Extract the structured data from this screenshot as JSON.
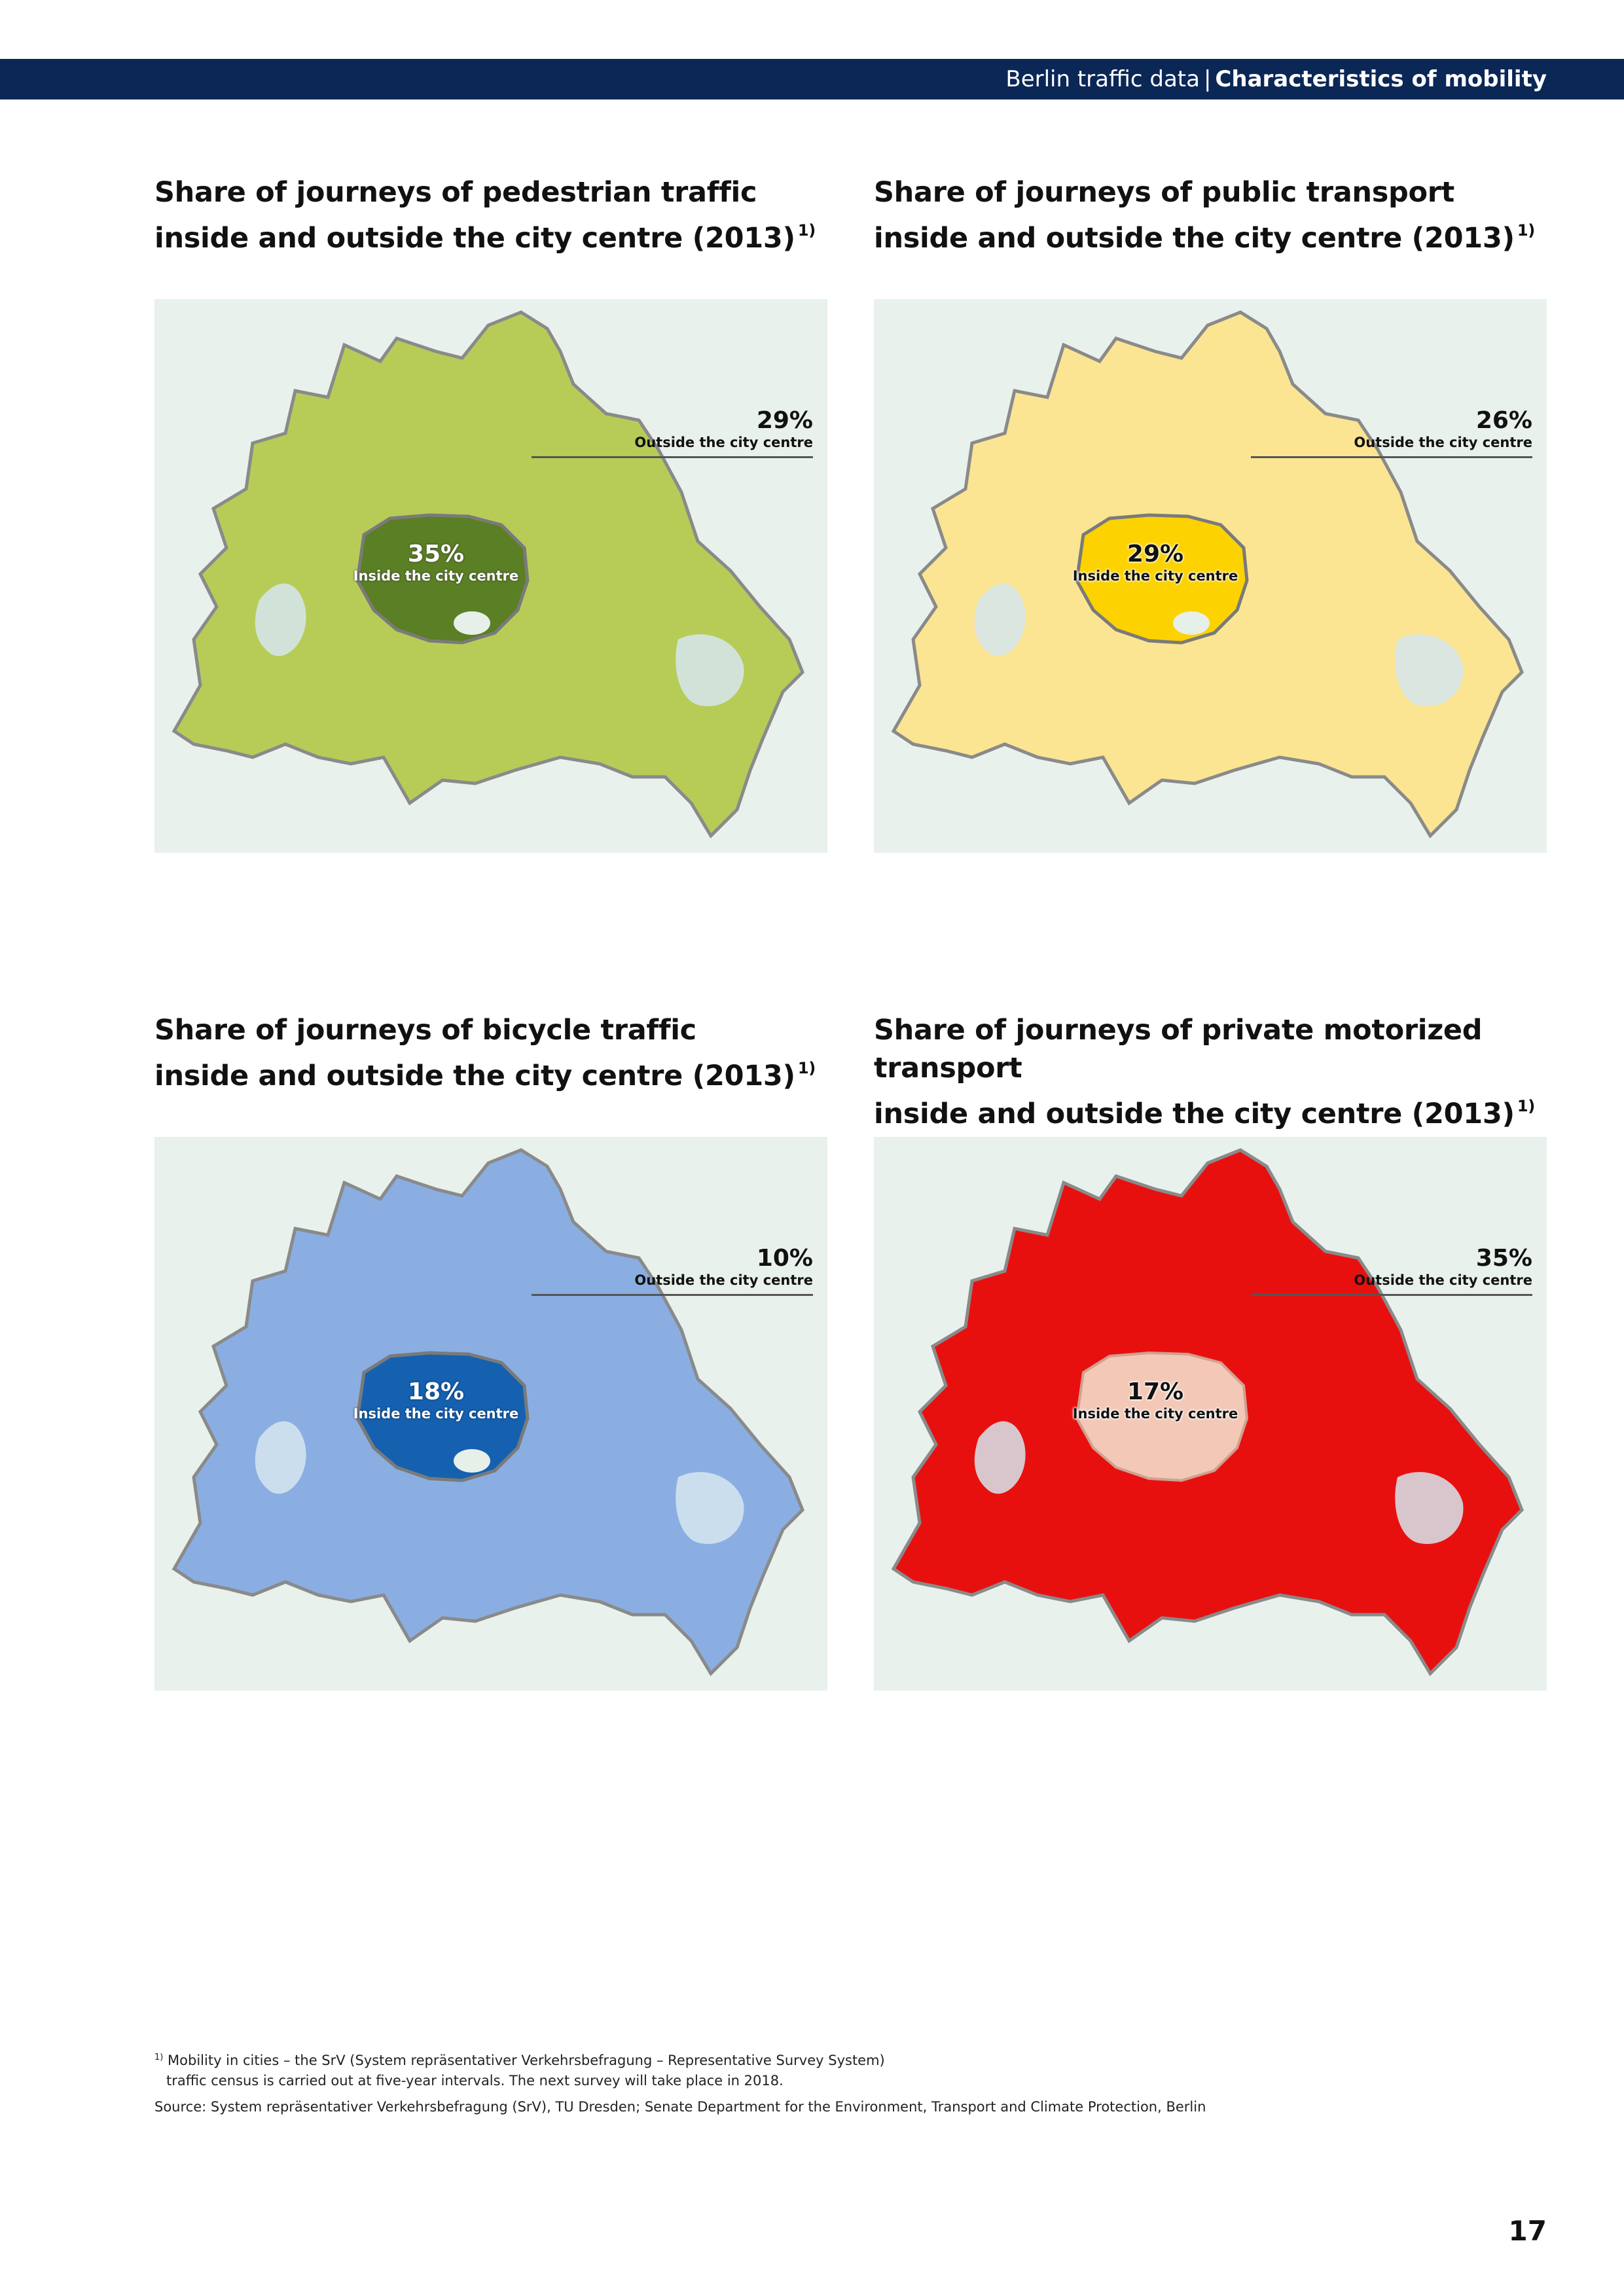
{
  "header": {
    "section": "Berlin traffic data",
    "separator": "|",
    "chapter": "Characteristics of mobility"
  },
  "panels": [
    {
      "title_line1": "Share of journeys of pedestrian traffic",
      "title_line2": "inside and outside the city centre (2013)",
      "footnote_ref": "1)",
      "inside_pct": "35%",
      "inside_label": "Inside the city centre",
      "outside_pct": "29%",
      "outside_label": "Outside the city centre",
      "inside_value": 35,
      "outside_value": 29,
      "colors": {
        "area": "#b7cc57",
        "centre": "#5b7f24",
        "centre_text": "#ffffff"
      }
    },
    {
      "title_line1": "Share of journeys of public transport",
      "title_line2": "inside and outside the city centre (2013)",
      "footnote_ref": "1)",
      "inside_pct": "29%",
      "inside_label": "Inside the city centre",
      "outside_pct": "26%",
      "outside_label": "Outside the city centre",
      "inside_value": 29,
      "outside_value": 26,
      "colors": {
        "area": "#fbe592",
        "centre": "#fcd200",
        "centre_text": "#111111"
      }
    },
    {
      "title_line1": "Share of journeys of bicycle traffic",
      "title_line2": "inside and outside the city centre (2013)",
      "footnote_ref": "1)",
      "inside_pct": "18%",
      "inside_label": "Inside the city centre",
      "outside_pct": "10%",
      "outside_label": "Outside the city centre",
      "inside_value": 18,
      "outside_value": 10,
      "colors": {
        "area": "#8aaee2",
        "centre": "#1561b0",
        "centre_text": "#ffffff"
      }
    },
    {
      "title_line1": "Share of journeys of private motorized transport",
      "title_line2": "inside and outside the city centre (2013)",
      "footnote_ref": "1)",
      "inside_pct": "17%",
      "inside_label": "Inside the city centre",
      "outside_pct": "35%",
      "outside_label": "Outside the city centre",
      "inside_value": 17,
      "outside_value": 35,
      "colors": {
        "area": "#e8100f",
        "centre": "#f3c8b6",
        "centre_text": "#111111"
      }
    }
  ],
  "footnote": {
    "marker": "1)",
    "line1": "Mobility in cities – the SrV (System repräsentativer Verkehrsbefragung – Representative Survey System)",
    "line2": "traffic census is carried out at five-year intervals. The next survey will take place in 2018.",
    "source": "Source: System repräsentativer Verkehrsbefragung (SrV), TU Dresden; Senate Department for the Environment, Transport and Climate Protection, Berlin"
  },
  "page_number": "17"
}
